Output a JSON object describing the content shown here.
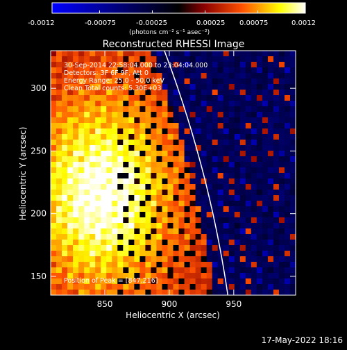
{
  "colorbar": {
    "ticks": [
      "-0.0012",
      "-0.00075",
      "-0.00025",
      "0.00025",
      "0.00075",
      "0.0012"
    ],
    "tick_values": [
      -0.0012,
      -0.00075,
      -0.00025,
      0.00025,
      0.00075,
      0.0012
    ],
    "range": [
      -0.0012,
      0.0012
    ],
    "colors": [
      "#0000ff",
      "#000000",
      "#8b0000",
      "#ff5000",
      "#ffff00",
      "#ffffff"
    ]
  },
  "chart_data": {
    "type": "heatmap",
    "title": "Reconstructed RHESSI Image",
    "xlabel": "Heliocentric X (arcsec)",
    "ylabel": "Heliocentric Y (arcsec)",
    "xlim": [
      808,
      998
    ],
    "ylim": [
      135,
      330
    ],
    "x_ticks": [
      850,
      900,
      950
    ],
    "y_ticks": [
      150,
      200,
      250,
      300
    ],
    "units": "(photons cm⁻² s⁻¹ asec⁻²)",
    "limb_color": "#ffffff",
    "annotations": [
      "30-Sep-2014 22:58:04.000 to 23:04:04.000",
      "Detectors: 3F 6F 9F, Att 0",
      "Energy Range: 25.0 - 50.0 keV",
      "Clean     Total counts: 5.30E+03"
    ],
    "peak_label": "Position of Peak = [847,216]",
    "peak": [
      847,
      216
    ]
  },
  "footer_date": "17-May-2022 18:16"
}
